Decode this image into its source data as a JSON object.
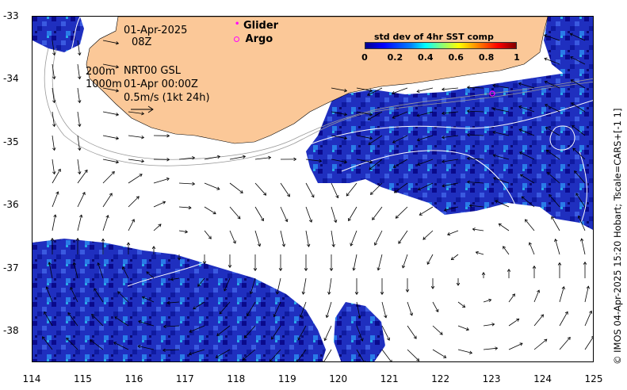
{
  "map": {
    "x_ticks": [
      "114",
      "115",
      "116",
      "117",
      "118",
      "119",
      "120",
      "121",
      "122",
      "123",
      "124",
      "125"
    ],
    "y_ticks": [
      "-33",
      "-34",
      "-35",
      "-36",
      "-37",
      "-38"
    ],
    "lon_range": [
      114,
      125
    ],
    "lat_range": [
      -38.5,
      -33
    ],
    "land_color": "#fbc898",
    "ocean_color": "#ffffff",
    "sst_low_color": "#1010b8",
    "current_arrow_color": "#000000",
    "contour_color": "#ffffff"
  },
  "annotations": {
    "date": "01-Apr-2025",
    "time": "08Z",
    "isobath_200": "200m",
    "product": "NRT00 GSL",
    "isobath_1000": "1000m",
    "product_time": "01-Apr 00:00Z",
    "scale_arrow_label": "0.5m/s (1kt 24h)"
  },
  "legend": {
    "glider_label": "Glider",
    "glider_color": "#ff00ff",
    "argo_label": "Argo",
    "argo_color": "#ff00ff"
  },
  "colorbar": {
    "title": "std dev of 4hr SST comp",
    "ticks": [
      "0",
      "0.2",
      "0.4",
      "0.6",
      "0.8",
      "1"
    ],
    "range": [
      0,
      1
    ],
    "colormap": "jet"
  },
  "footer": {
    "credit": "© IMOS 04-Apr-2025 15:20 Hobart; Tscale=CARS+[-1 1]"
  }
}
